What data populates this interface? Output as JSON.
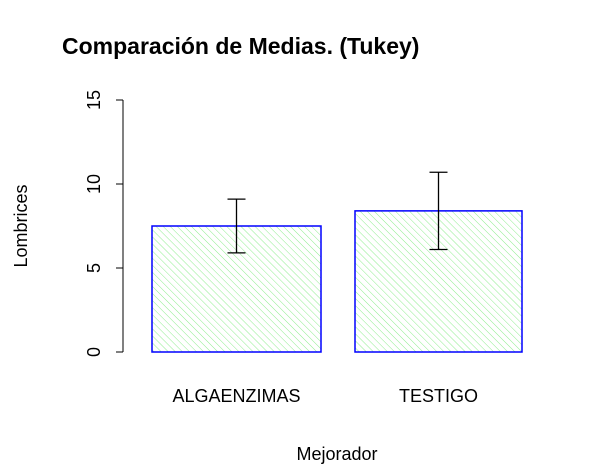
{
  "chart_data": {
    "type": "bar",
    "title": "Comparación de Medias.  (Tukey)",
    "x_label": "Mejorador",
    "y_label": "Lombrices",
    "categories": [
      "ALGAENZIMAS",
      "TESTIGO"
    ],
    "values": [
      7.5,
      8.4
    ],
    "errors": [
      1.6,
      2.3
    ],
    "color": "#90ee90",
    "border_color": "#0000ff",
    "ylim": [
      0,
      15
    ],
    "yticks": [
      0,
      5,
      10,
      15
    ],
    "grid": false
  }
}
